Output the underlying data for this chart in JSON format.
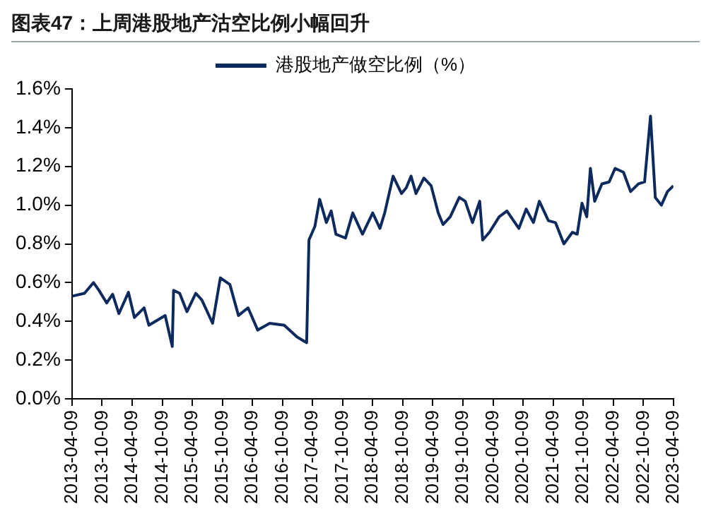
{
  "chart_data": {
    "type": "line",
    "title": "图表47：上周港股地产沽空比例小幅回升",
    "x": [
      "2013-04-09",
      "2013-06-24",
      "2013-08-18",
      "2013-09-20",
      "2013-11-06",
      "2013-12-12",
      "2014-01-19",
      "2014-03-18",
      "2014-04-23",
      "2014-06-21",
      "2014-07-20",
      "2014-10-27",
      "2014-12-09",
      "2014-12-17",
      "2015-01-23",
      "2015-03-08",
      "2015-05-01",
      "2015-06-07",
      "2015-08-11",
      "2015-09-27",
      "2015-11-24",
      "2016-01-15",
      "2016-03-13",
      "2016-05-11",
      "2016-07-23",
      "2016-10-19",
      "2017-01-04",
      "2017-03-04",
      "2017-03-18",
      "2017-04-23",
      "2017-05-22",
      "2017-07-02",
      "2017-07-31",
      "2017-08-29",
      "2017-10-26",
      "2017-12-09",
      "2018-02-06",
      "2018-04-09",
      "2018-05-23",
      "2018-06-21",
      "2018-08-11",
      "2018-10-01",
      "2018-10-30",
      "2018-11-28",
      "2018-12-28",
      "2019-02-14",
      "2019-03-30",
      "2019-05-12",
      "2019-06-10",
      "2019-07-24",
      "2019-09-17",
      "2019-10-23",
      "2019-12-06",
      "2020-01-19",
      "2020-02-06",
      "2020-03-18",
      "2020-05-16",
      "2020-07-02",
      "2020-09-13",
      "2020-10-27",
      "2020-12-10",
      "2021-01-15",
      "2021-03-11",
      "2021-04-23",
      "2021-06-13",
      "2021-08-04",
      "2021-09-02",
      "2021-10-01",
      "2021-10-30",
      "2021-11-21",
      "2021-12-17",
      "2022-01-30",
      "2022-03-15",
      "2022-04-20",
      "2022-06-10",
      "2022-07-23",
      "2022-09-09",
      "2022-10-16",
      "2022-11-21",
      "2022-12-20",
      "2023-01-26",
      "2023-03-04",
      "2023-04-09"
    ],
    "series": [
      {
        "name": "港股地产做空比例（%）",
        "color": "#0d2a5e",
        "values": [
          0.53,
          0.545,
          0.6,
          0.56,
          0.495,
          0.54,
          0.44,
          0.55,
          0.42,
          0.47,
          0.38,
          0.43,
          0.27,
          0.56,
          0.545,
          0.45,
          0.545,
          0.51,
          0.39,
          0.625,
          0.59,
          0.43,
          0.47,
          0.355,
          0.39,
          0.38,
          0.32,
          0.29,
          0.82,
          0.89,
          1.03,
          0.91,
          0.97,
          0.85,
          0.83,
          0.96,
          0.85,
          0.96,
          0.88,
          0.96,
          1.15,
          1.06,
          1.09,
          1.15,
          1.06,
          1.14,
          1.1,
          0.96,
          0.9,
          0.94,
          1.04,
          1.02,
          0.91,
          1.02,
          0.82,
          0.86,
          0.94,
          0.97,
          0.88,
          0.98,
          0.91,
          1.02,
          0.92,
          0.91,
          0.8,
          0.86,
          0.85,
          1.01,
          0.94,
          1.19,
          1.02,
          1.11,
          1.12,
          1.19,
          1.17,
          1.07,
          1.11,
          1.12,
          1.46,
          1.04,
          1.0,
          1.07,
          1.1
        ]
      }
    ],
    "xlim": [
      "2013-04-09",
      "2023-04-09"
    ],
    "xticks": [
      "2013-04-09",
      "2013-10-09",
      "2014-04-09",
      "2014-10-09",
      "2015-04-09",
      "2015-10-09",
      "2016-04-09",
      "2016-10-09",
      "2017-04-09",
      "2017-10-09",
      "2018-04-09",
      "2018-10-09",
      "2019-04-09",
      "2019-10-09",
      "2020-04-09",
      "2020-10-09",
      "2021-04-09",
      "2021-10-09",
      "2022-04-09",
      "2022-10-09",
      "2023-04-09"
    ],
    "ylim": [
      0,
      1.6
    ],
    "yticks": [
      {
        "value": 0,
        "label": "0.0%"
      },
      {
        "value": 0.2,
        "label": "0.2%"
      },
      {
        "value": 0.4,
        "label": "0.4%"
      },
      {
        "value": 0.6,
        "label": "0.6%"
      },
      {
        "value": 0.8,
        "label": "0.8%"
      },
      {
        "value": 1.0,
        "label": "1.0%"
      },
      {
        "value": 1.2,
        "label": "1.2%"
      },
      {
        "value": 1.4,
        "label": "1.4%"
      },
      {
        "value": 1.6,
        "label": "1.6%"
      }
    ],
    "grid": false,
    "legend": "top",
    "marker": "none",
    "line_style": "solid"
  }
}
